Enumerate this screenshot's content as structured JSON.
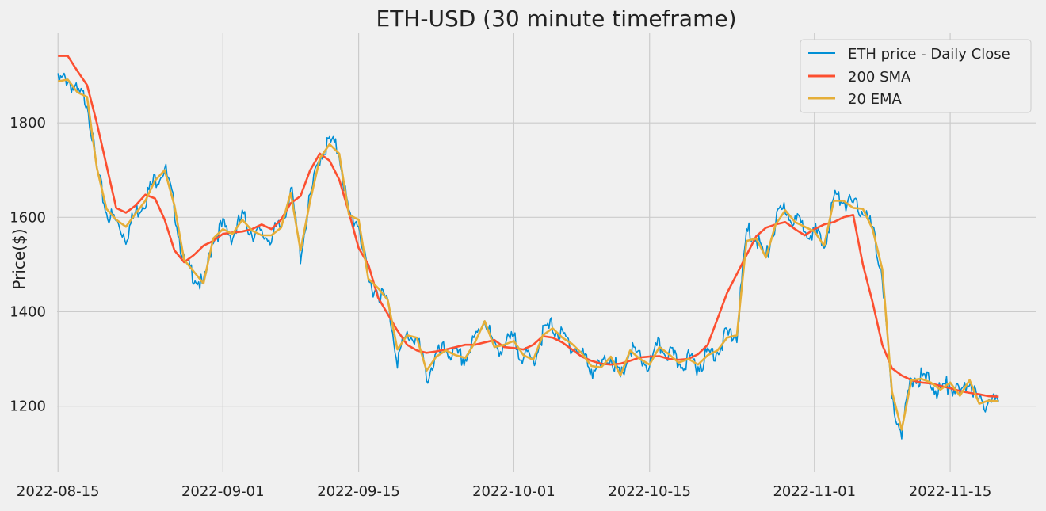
{
  "chart_data": {
    "type": "line",
    "title": "ETH-USD (30 minute timeframe)",
    "xlabel": "",
    "ylabel": "Price($)",
    "x_ticks": [
      "2022-08-15",
      "2022-09-01",
      "2022-09-15",
      "2022-10-01",
      "2022-10-15",
      "2022-11-01",
      "2022-11-15"
    ],
    "y_ticks": [
      1200,
      1400,
      1600,
      1800
    ],
    "xlim": [
      "2022-08-15",
      "2022-11-22"
    ],
    "ylim": [
      1060,
      1990
    ],
    "grid": true,
    "legend_position": "top-right",
    "series": [
      {
        "name": "ETH price - Daily Close",
        "color": "#008fd5",
        "style": "thin-noisy",
        "x": [
          "2022-08-15",
          "2022-08-16",
          "2022-08-17",
          "2022-08-18",
          "2022-08-19",
          "2022-08-20",
          "2022-08-21",
          "2022-08-22",
          "2022-08-23",
          "2022-08-24",
          "2022-08-25",
          "2022-08-26",
          "2022-08-27",
          "2022-08-28",
          "2022-08-29",
          "2022-08-30",
          "2022-08-31",
          "2022-09-01",
          "2022-09-02",
          "2022-09-03",
          "2022-09-04",
          "2022-09-05",
          "2022-09-06",
          "2022-09-07",
          "2022-09-08",
          "2022-09-09",
          "2022-09-10",
          "2022-09-11",
          "2022-09-12",
          "2022-09-13",
          "2022-09-14",
          "2022-09-15",
          "2022-09-16",
          "2022-09-17",
          "2022-09-18",
          "2022-09-19",
          "2022-09-20",
          "2022-09-21",
          "2022-09-22",
          "2022-09-23",
          "2022-09-24",
          "2022-09-25",
          "2022-09-26",
          "2022-09-27",
          "2022-09-28",
          "2022-09-29",
          "2022-09-30",
          "2022-10-01",
          "2022-10-02",
          "2022-10-03",
          "2022-10-04",
          "2022-10-05",
          "2022-10-06",
          "2022-10-07",
          "2022-10-08",
          "2022-10-09",
          "2022-10-10",
          "2022-10-11",
          "2022-10-12",
          "2022-10-13",
          "2022-10-14",
          "2022-10-15",
          "2022-10-16",
          "2022-10-17",
          "2022-10-18",
          "2022-10-19",
          "2022-10-20",
          "2022-10-21",
          "2022-10-22",
          "2022-10-23",
          "2022-10-24",
          "2022-10-25",
          "2022-10-26",
          "2022-10-27",
          "2022-10-28",
          "2022-10-29",
          "2022-10-30",
          "2022-10-31",
          "2022-11-01",
          "2022-11-02",
          "2022-11-03",
          "2022-11-04",
          "2022-11-05",
          "2022-11-06",
          "2022-11-07",
          "2022-11-08",
          "2022-11-09",
          "2022-11-10",
          "2022-11-11",
          "2022-11-12",
          "2022-11-13",
          "2022-11-14",
          "2022-11-15",
          "2022-11-16",
          "2022-11-17",
          "2022-11-18",
          "2022-11-19",
          "2022-11-20"
        ],
        "values": [
          1885,
          1895,
          1860,
          1850,
          1700,
          1610,
          1590,
          1560,
          1610,
          1640,
          1680,
          1705,
          1620,
          1500,
          1480,
          1450,
          1560,
          1580,
          1560,
          1600,
          1570,
          1560,
          1560,
          1580,
          1660,
          1520,
          1640,
          1730,
          1760,
          1740,
          1600,
          1590,
          1460,
          1445,
          1420,
          1300,
          1350,
          1345,
          1260,
          1305,
          1320,
          1305,
          1300,
          1340,
          1390,
          1320,
          1330,
          1340,
          1305,
          1295,
          1355,
          1370,
          1345,
          1330,
          1310,
          1280,
          1280,
          1310,
          1255,
          1320,
          1300,
          1285,
          1330,
          1310,
          1290,
          1300,
          1285,
          1310,
          1320,
          1350,
          1350,
          1570,
          1560,
          1510,
          1590,
          1620,
          1590,
          1580,
          1570,
          1535,
          1640,
          1640,
          1620,
          1620,
          1570,
          1480,
          1210,
          1140,
          1260,
          1260,
          1250,
          1230,
          1250,
          1220,
          1260,
          1200,
          1215,
          1210
        ]
      },
      {
        "name": "200 SMA",
        "color": "#fc4f30",
        "style": "smooth",
        "x": [
          "2022-08-15",
          "2022-08-16",
          "2022-08-17",
          "2022-08-18",
          "2022-08-19",
          "2022-08-20",
          "2022-08-21",
          "2022-08-22",
          "2022-08-23",
          "2022-08-24",
          "2022-08-25",
          "2022-08-26",
          "2022-08-27",
          "2022-08-28",
          "2022-08-29",
          "2022-08-30",
          "2022-08-31",
          "2022-09-01",
          "2022-09-02",
          "2022-09-03",
          "2022-09-04",
          "2022-09-05",
          "2022-09-06",
          "2022-09-07",
          "2022-09-08",
          "2022-09-09",
          "2022-09-10",
          "2022-09-11",
          "2022-09-12",
          "2022-09-13",
          "2022-09-14",
          "2022-09-15",
          "2022-09-16",
          "2022-09-17",
          "2022-09-18",
          "2022-09-19",
          "2022-09-20",
          "2022-09-21",
          "2022-09-22",
          "2022-09-23",
          "2022-09-24",
          "2022-09-25",
          "2022-09-26",
          "2022-09-27",
          "2022-09-28",
          "2022-09-29",
          "2022-09-30",
          "2022-10-01",
          "2022-10-02",
          "2022-10-03",
          "2022-10-04",
          "2022-10-05",
          "2022-10-06",
          "2022-10-07",
          "2022-10-08",
          "2022-10-09",
          "2022-10-10",
          "2022-10-11",
          "2022-10-12",
          "2022-10-13",
          "2022-10-14",
          "2022-10-15",
          "2022-10-16",
          "2022-10-17",
          "2022-10-18",
          "2022-10-19",
          "2022-10-20",
          "2022-10-21",
          "2022-10-22",
          "2022-10-23",
          "2022-10-24",
          "2022-10-25",
          "2022-10-26",
          "2022-10-27",
          "2022-10-28",
          "2022-10-29",
          "2022-10-30",
          "2022-10-31",
          "2022-11-01",
          "2022-11-02",
          "2022-11-03",
          "2022-11-04",
          "2022-11-05",
          "2022-11-06",
          "2022-11-07",
          "2022-11-08",
          "2022-11-09",
          "2022-11-10",
          "2022-11-11",
          "2022-11-12",
          "2022-11-13",
          "2022-11-14",
          "2022-11-15",
          "2022-11-16",
          "2022-11-17",
          "2022-11-18",
          "2022-11-19",
          "2022-11-20"
        ],
        "values": [
          1942,
          1942,
          1910,
          1880,
          1800,
          1710,
          1620,
          1610,
          1625,
          1648,
          1640,
          1595,
          1530,
          1505,
          1520,
          1540,
          1550,
          1565,
          1568,
          1570,
          1575,
          1585,
          1575,
          1595,
          1630,
          1645,
          1700,
          1735,
          1720,
          1680,
          1610,
          1535,
          1500,
          1430,
          1395,
          1360,
          1330,
          1318,
          1313,
          1316,
          1320,
          1325,
          1330,
          1330,
          1335,
          1340,
          1325,
          1323,
          1320,
          1330,
          1348,
          1345,
          1335,
          1320,
          1305,
          1296,
          1290,
          1288,
          1290,
          1296,
          1303,
          1305,
          1306,
          1300,
          1298,
          1300,
          1310,
          1330,
          1385,
          1440,
          1480,
          1520,
          1560,
          1578,
          1585,
          1590,
          1575,
          1562,
          1575,
          1585,
          1590,
          1600,
          1605,
          1500,
          1420,
          1330,
          1280,
          1265,
          1255,
          1250,
          1248,
          1243,
          1238,
          1232,
          1228,
          1225,
          1221,
          1220
        ]
      },
      {
        "name": "20 EMA",
        "color": "#e5ae38",
        "style": "smooth",
        "x": [
          "2022-08-15",
          "2022-08-16",
          "2022-08-17",
          "2022-08-18",
          "2022-08-19",
          "2022-08-20",
          "2022-08-21",
          "2022-08-22",
          "2022-08-23",
          "2022-08-24",
          "2022-08-25",
          "2022-08-26",
          "2022-08-27",
          "2022-08-28",
          "2022-08-29",
          "2022-08-30",
          "2022-08-31",
          "2022-09-01",
          "2022-09-02",
          "2022-09-03",
          "2022-09-04",
          "2022-09-05",
          "2022-09-06",
          "2022-09-07",
          "2022-09-08",
          "2022-09-09",
          "2022-09-10",
          "2022-09-11",
          "2022-09-12",
          "2022-09-13",
          "2022-09-14",
          "2022-09-15",
          "2022-09-16",
          "2022-09-17",
          "2022-09-18",
          "2022-09-19",
          "2022-09-20",
          "2022-09-21",
          "2022-09-22",
          "2022-09-23",
          "2022-09-24",
          "2022-09-25",
          "2022-09-26",
          "2022-09-27",
          "2022-09-28",
          "2022-09-29",
          "2022-09-30",
          "2022-10-01",
          "2022-10-02",
          "2022-10-03",
          "2022-10-04",
          "2022-10-05",
          "2022-10-06",
          "2022-10-07",
          "2022-10-08",
          "2022-10-09",
          "2022-10-10",
          "2022-10-11",
          "2022-10-12",
          "2022-10-13",
          "2022-10-14",
          "2022-10-15",
          "2022-10-16",
          "2022-10-17",
          "2022-10-18",
          "2022-10-19",
          "2022-10-20",
          "2022-10-21",
          "2022-10-22",
          "2022-10-23",
          "2022-10-24",
          "2022-10-25",
          "2022-10-26",
          "2022-10-27",
          "2022-10-28",
          "2022-10-29",
          "2022-10-30",
          "2022-10-31",
          "2022-11-01",
          "2022-11-02",
          "2022-11-03",
          "2022-11-04",
          "2022-11-05",
          "2022-11-06",
          "2022-11-07",
          "2022-11-08",
          "2022-11-09",
          "2022-11-10",
          "2022-11-11",
          "2022-11-12",
          "2022-11-13",
          "2022-11-14",
          "2022-11-15",
          "2022-11-16",
          "2022-11-17",
          "2022-11-18",
          "2022-11-19",
          "2022-11-20"
        ],
        "values": [
          1888,
          1892,
          1865,
          1855,
          1705,
          1618,
          1595,
          1580,
          1608,
          1635,
          1678,
          1700,
          1625,
          1510,
          1485,
          1460,
          1555,
          1575,
          1565,
          1595,
          1572,
          1562,
          1562,
          1578,
          1652,
          1530,
          1635,
          1725,
          1755,
          1735,
          1605,
          1595,
          1470,
          1450,
          1425,
          1320,
          1350,
          1345,
          1275,
          1305,
          1318,
          1308,
          1302,
          1335,
          1380,
          1325,
          1330,
          1338,
          1308,
          1298,
          1350,
          1365,
          1345,
          1332,
          1312,
          1285,
          1282,
          1305,
          1265,
          1318,
          1300,
          1288,
          1325,
          1310,
          1292,
          1300,
          1288,
          1308,
          1318,
          1345,
          1350,
          1550,
          1555,
          1515,
          1585,
          1615,
          1590,
          1580,
          1570,
          1540,
          1635,
          1635,
          1620,
          1618,
          1575,
          1490,
          1230,
          1150,
          1255,
          1258,
          1250,
          1235,
          1250,
          1222,
          1255,
          1205,
          1212,
          1210
        ]
      }
    ]
  }
}
